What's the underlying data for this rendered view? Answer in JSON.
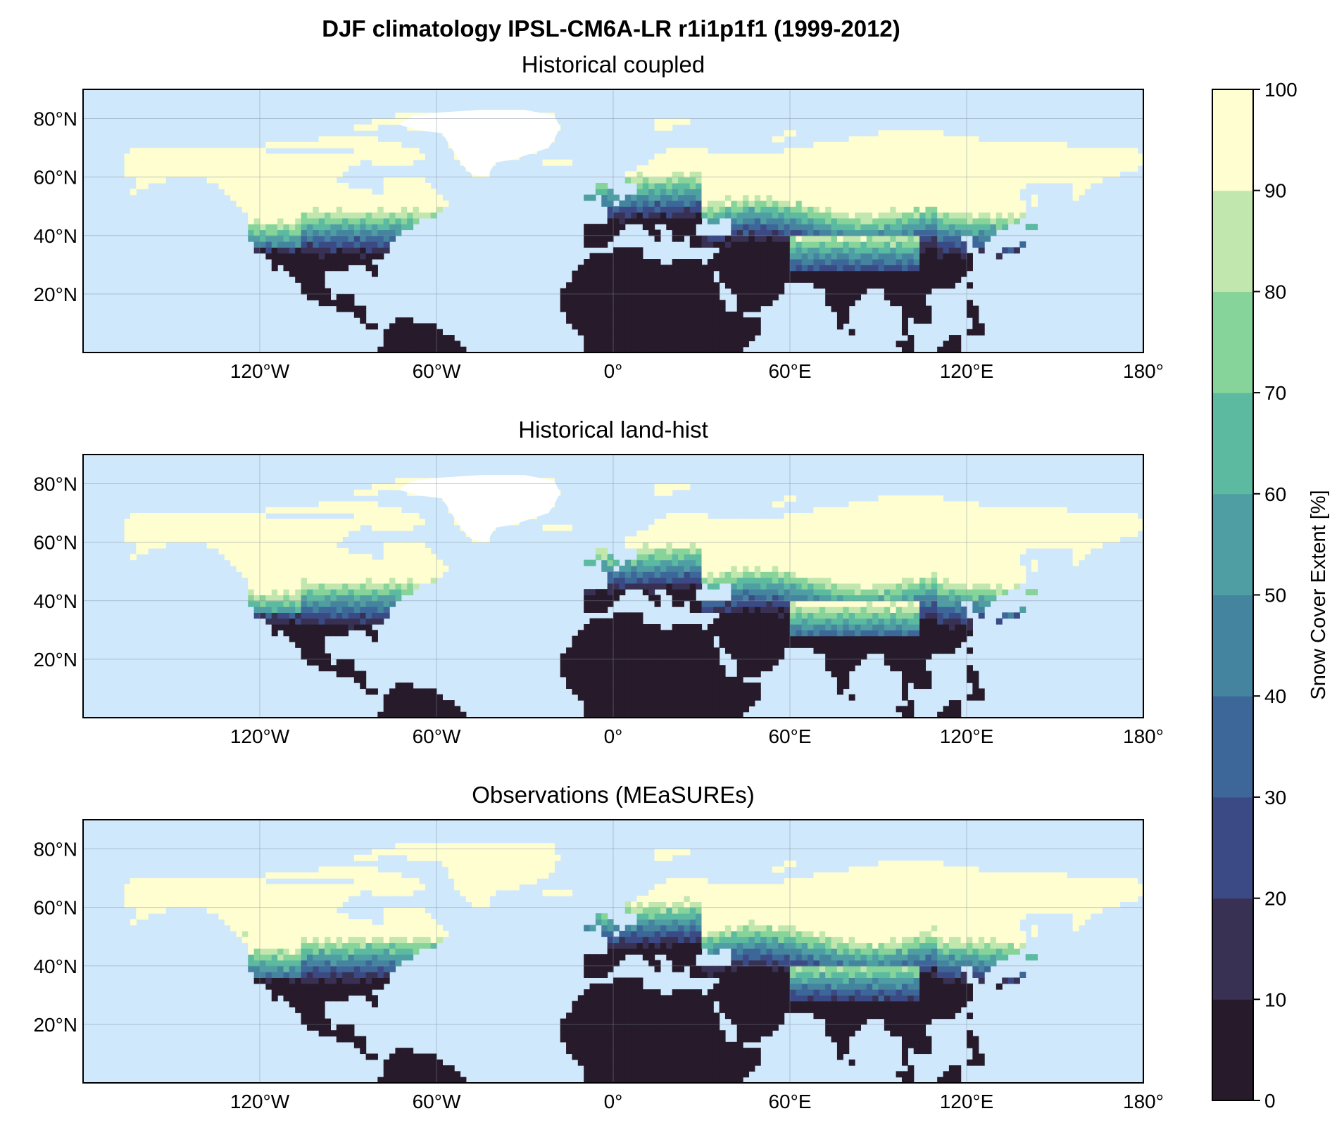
{
  "title": "DJF climatology IPSL-CM6A-LR r1i1p1f1 (1999-2012)",
  "map": {
    "projection": "PlateCarree",
    "lon_range": [
      -180,
      180
    ],
    "lat_range": [
      0,
      90
    ],
    "lon_ticks": [
      {
        "value": -120,
        "label": "120°W"
      },
      {
        "value": -60,
        "label": "60°W"
      },
      {
        "value": 0,
        "label": "0°"
      },
      {
        "value": 60,
        "label": "60°E"
      },
      {
        "value": 120,
        "label": "120°E"
      },
      {
        "value": 180,
        "label": "180°"
      }
    ],
    "lat_ticks": [
      {
        "value": 20,
        "label": "20°N"
      },
      {
        "value": 40,
        "label": "40°N"
      },
      {
        "value": 60,
        "label": "60°N"
      },
      {
        "value": 80,
        "label": "80°N"
      }
    ],
    "ocean_color": "#d0e8fb",
    "gridlines": true
  },
  "panels": [
    {
      "title": "Historical coupled",
      "snow_line_offset": 0
    },
    {
      "title": "Historical land-hist",
      "snow_line_offset": -2
    },
    {
      "title": "Observations (MEaSUREs)",
      "snow_line_offset": 1
    }
  ],
  "colorbar": {
    "label": "Snow Cover Extent [%]",
    "ticks": [
      0,
      10,
      20,
      30,
      40,
      50,
      60,
      70,
      80,
      90,
      100
    ],
    "colors": [
      "#261a2b",
      "#383153",
      "#3b4a85",
      "#3d6699",
      "#44849f",
      "#4e9ea3",
      "#5bbaa0",
      "#86d49a",
      "#c2e7ae",
      "#fefed0"
    ],
    "min": 0,
    "max": 100
  },
  "chart_data": {
    "type": "heatmap",
    "title": "DJF climatology IPSL-CM6A-LR r1i1p1f1 (1999-2012)",
    "panels": [
      "Historical coupled",
      "Historical land-hist",
      "Observations (MEaSUREs)"
    ],
    "xlim": [
      -180,
      180
    ],
    "ylim": [
      0,
      90
    ],
    "colorbar_label": "Snow Cover Extent [%]",
    "colorbar_range": [
      0,
      100
    ],
    "colorbar_levels": [
      0,
      10,
      20,
      30,
      40,
      50,
      60,
      70,
      80,
      90,
      100
    ]
  }
}
